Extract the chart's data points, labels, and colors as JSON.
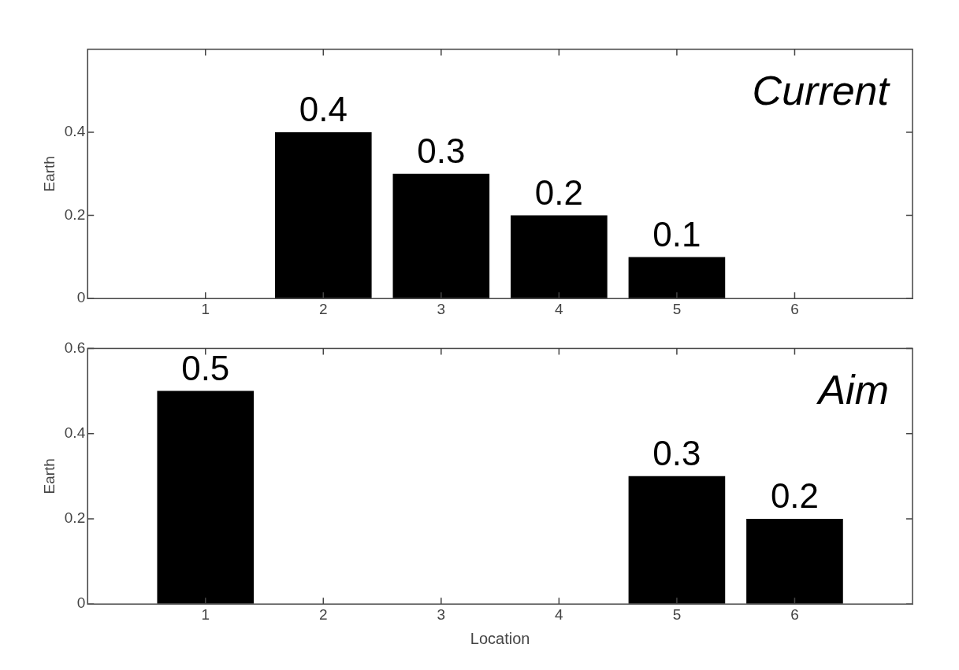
{
  "chart_data": [
    {
      "type": "bar",
      "x": [
        1,
        2,
        3,
        4,
        5,
        6
      ],
      "values": [
        0,
        0.4,
        0.3,
        0.2,
        0.1,
        0
      ],
      "color": "#000000",
      "value_labels": [
        null,
        "0.4",
        "0.3",
        "0.2",
        "0.1",
        null
      ],
      "xlim": [
        0,
        7
      ],
      "xticks": [
        1,
        2,
        3,
        4,
        5,
        6
      ],
      "ylim": [
        0,
        0.6
      ],
      "yticks": [
        0,
        0.2,
        0.4
      ],
      "ylabel": "Earth",
      "annotations": [
        "Current"
      ],
      "grid": false,
      "legend": false
    },
    {
      "type": "bar",
      "x": [
        1,
        2,
        3,
        4,
        5,
        6
      ],
      "values": [
        0.5,
        0,
        0,
        0,
        0.3,
        0.2
      ],
      "color": "#000000",
      "value_labels": [
        "0.5",
        null,
        null,
        null,
        "0.3",
        "0.2"
      ],
      "xlim": [
        0,
        7
      ],
      "xticks": [
        1,
        2,
        3,
        4,
        5,
        6
      ],
      "ylim": [
        0,
        0.6
      ],
      "yticks": [
        0,
        0.2,
        0.4,
        0.6
      ],
      "ylabel": "Earth",
      "xlabel": "Location",
      "annotations": [
        "Aim"
      ],
      "grid": false,
      "legend": false
    }
  ]
}
